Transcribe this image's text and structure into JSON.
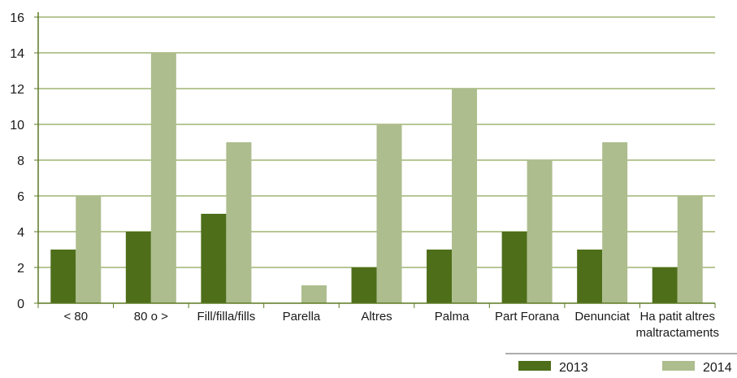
{
  "chart_data": {
    "type": "bar",
    "title": "",
    "xlabel": "",
    "ylabel": "",
    "ylim": [
      0,
      16
    ],
    "yticks": [
      "0",
      "2",
      "4",
      "6",
      "8",
      "10",
      "12",
      "14",
      "16"
    ],
    "grid": true,
    "legend_position": "bottom-right",
    "categories": [
      [
        "< 80"
      ],
      [
        "80 o >"
      ],
      [
        "Fill/filla/fills"
      ],
      [
        "Parella"
      ],
      [
        "Altres"
      ],
      [
        "Palma"
      ],
      [
        "Part Forana"
      ],
      [
        "Denunciat"
      ],
      [
        "Ha patit altres",
        "maltractaments"
      ]
    ],
    "series": [
      {
        "name": "2013",
        "color": "#4e6e1a",
        "values": [
          3,
          4,
          5,
          0,
          2,
          3,
          4,
          3,
          2
        ]
      },
      {
        "name": "2014",
        "color": "#adbd8d",
        "values": [
          6,
          14,
          9,
          1,
          10,
          12,
          8,
          9,
          6
        ]
      }
    ],
    "colors": {
      "grid": "#6f8f2e",
      "axis": "#5b7a22"
    }
  }
}
